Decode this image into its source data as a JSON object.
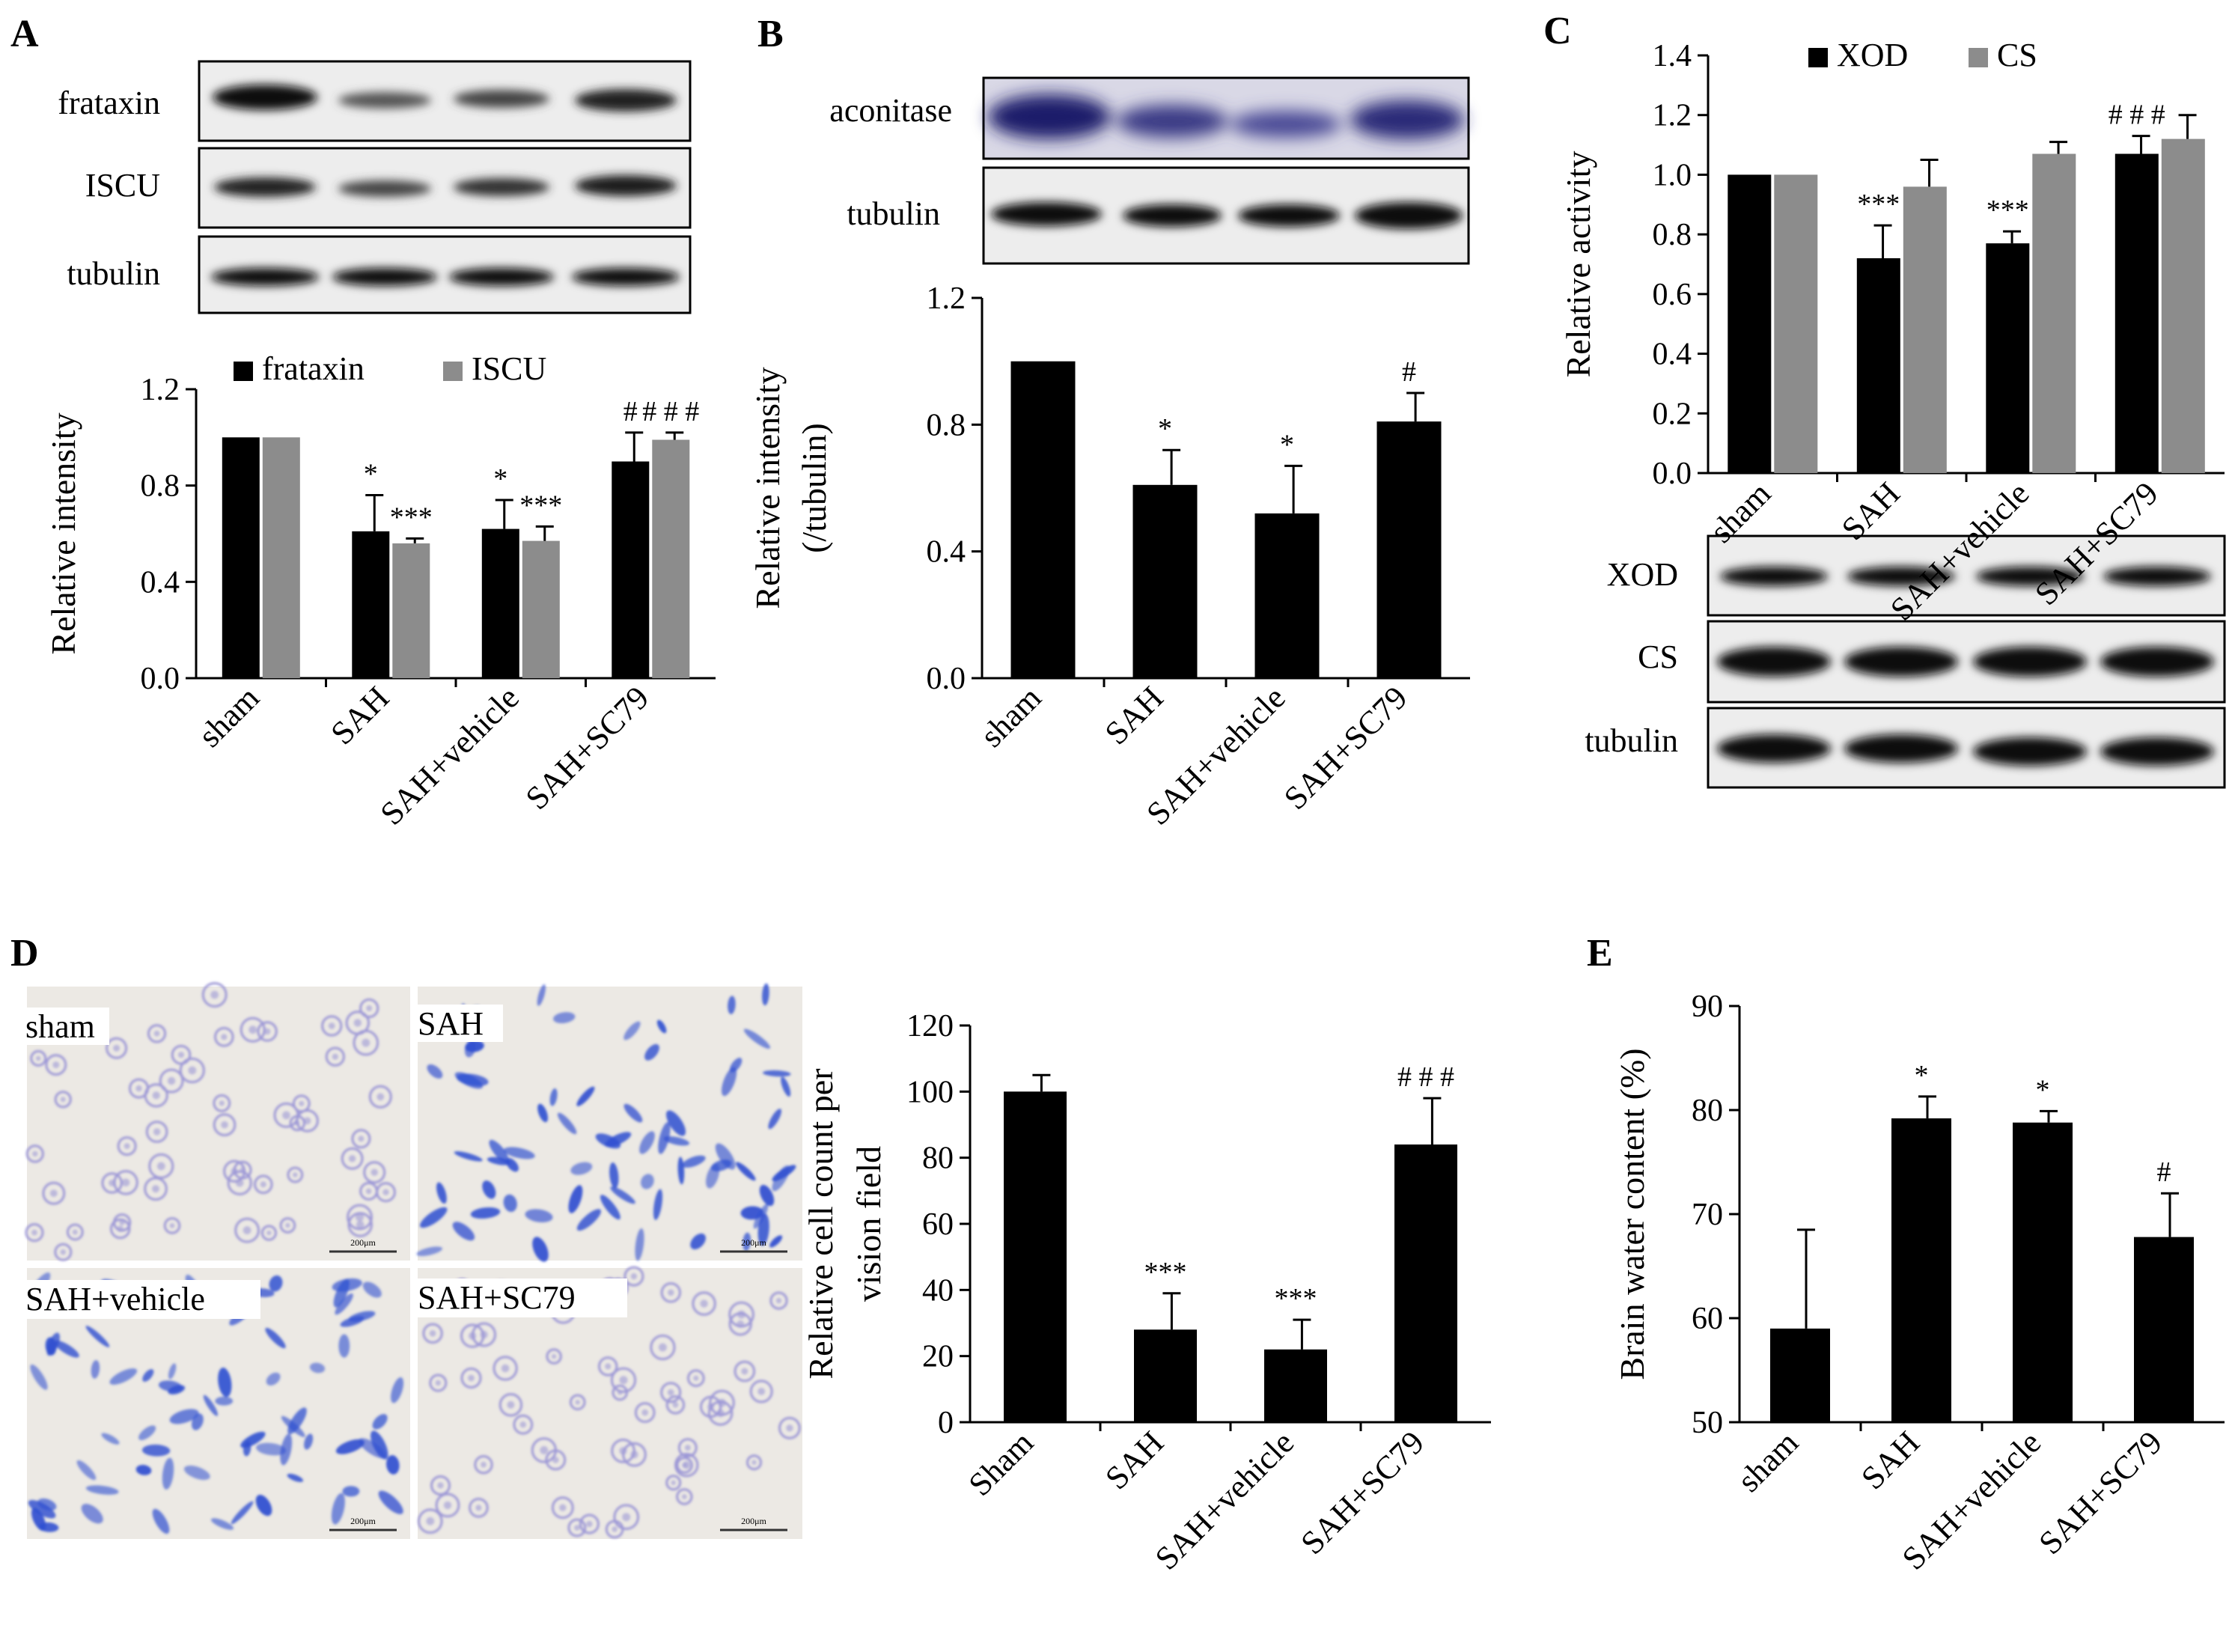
{
  "panels": {
    "A": {
      "letter": "A",
      "blot_labels": [
        "frataxin",
        "ISCU",
        "tubulin"
      ]
    },
    "B": {
      "letter": "B",
      "blot_labels": [
        "aconitase",
        "tubulin"
      ]
    },
    "C": {
      "letter": "C",
      "blot_labels": [
        "XOD",
        "CS",
        "tubulin"
      ]
    },
    "D": {
      "letter": "D",
      "micrograph_labels": [
        "sham",
        "SAH",
        "SAH+vehicle",
        "SAH+SC79"
      ],
      "scale_bar_text": "200μm"
    },
    "E": {
      "letter": "E"
    }
  },
  "colors": {
    "black_series": "#000000",
    "gray_series": "#8c8c8c",
    "blot_band": "#111111",
    "aconitase_band": "#2a2a6e",
    "micrograph_bg": "#ece9e4",
    "cell_blue": "#2f4fd0",
    "cell_pale": "#9c97d6"
  },
  "chart_data": [
    {
      "id": "A",
      "type": "bar",
      "categories": [
        "sham",
        "SAH",
        "SAH+vehicle",
        "SAH+SC79"
      ],
      "series": [
        {
          "name": "frataxin",
          "values": [
            1.0,
            0.61,
            0.62,
            0.9
          ],
          "errors": [
            0.0,
            0.15,
            0.12,
            0.12
          ]
        },
        {
          "name": "ISCU",
          "values": [
            1.0,
            0.56,
            0.57,
            0.99
          ],
          "errors": [
            0.0,
            0.02,
            0.06,
            0.03
          ]
        }
      ],
      "significance": [
        [
          "",
          ""
        ],
        [
          "*",
          "***"
        ],
        [
          "*",
          "***"
        ],
        [
          "#",
          "# # #"
        ]
      ],
      "ylabel": "Relative intensity",
      "ylim": [
        0,
        1.2
      ],
      "yticks": [
        "0.0",
        "0.4",
        "0.8",
        "1.2"
      ],
      "legend": "top"
    },
    {
      "id": "B",
      "type": "bar",
      "categories": [
        "sham",
        "SAH",
        "SAH+vehicle",
        "SAH+SC79"
      ],
      "series": [
        {
          "values": [
            1.0,
            0.61,
            0.52,
            0.81
          ],
          "errors": [
            0.0,
            0.11,
            0.15,
            0.09
          ]
        }
      ],
      "significance": [
        "",
        "*",
        "*",
        "#"
      ],
      "ylabel": [
        "Relative intensity",
        "(/tubulin)"
      ],
      "ylim": [
        0,
        1.2
      ],
      "yticks": [
        "0.0",
        "0.4",
        "0.8",
        "1.2"
      ]
    },
    {
      "id": "C",
      "type": "bar",
      "categories": [
        "sham",
        "SAH",
        "SAH+vehicle",
        "SAH+SC79"
      ],
      "series": [
        {
          "name": "XOD",
          "values": [
            1.0,
            0.72,
            0.77,
            1.07
          ],
          "errors": [
            0.0,
            0.11,
            0.04,
            0.06
          ]
        },
        {
          "name": "CS",
          "values": [
            1.0,
            0.96,
            1.07,
            1.12
          ],
          "errors": [
            0.0,
            0.09,
            0.04,
            0.08
          ]
        }
      ],
      "significance": [
        [
          "",
          ""
        ],
        [
          "***",
          ""
        ],
        [
          "***",
          ""
        ],
        [
          "# # #",
          ""
        ]
      ],
      "ylabel": "Relative activity",
      "ylim": [
        0,
        1.4
      ],
      "yticks": [
        "0.0",
        "0.2",
        "0.4",
        "0.6",
        "0.8",
        "1.0",
        "1.2",
        "1.4"
      ],
      "legend": "top"
    },
    {
      "id": "D",
      "type": "bar",
      "categories": [
        "Sham",
        "SAH",
        "SAH+vehicle",
        "SAH+SC79"
      ],
      "series": [
        {
          "values": [
            100,
            28,
            22,
            84
          ],
          "errors": [
            5,
            11,
            9,
            14
          ]
        }
      ],
      "significance": [
        "",
        "***",
        "***",
        "# # #"
      ],
      "ylabel": [
        "Relative cell count per",
        "vision field"
      ],
      "ylim": [
        0,
        120
      ],
      "yticks": [
        "0",
        "20",
        "40",
        "60",
        "80",
        "100",
        "120"
      ]
    },
    {
      "id": "E",
      "type": "bar",
      "categories": [
        "sham",
        "SAH",
        "SAH+vehicle",
        "SAH+SC79"
      ],
      "series": [
        {
          "values": [
            59,
            79.2,
            78.8,
            67.8
          ],
          "errors": [
            9.5,
            2.1,
            1.1,
            4.2
          ]
        }
      ],
      "significance": [
        "",
        "*",
        "*",
        "#"
      ],
      "ylabel": "Brain water content (%)",
      "ylim": [
        50,
        90
      ],
      "yticks": [
        "50",
        "60",
        "70",
        "80",
        "90"
      ]
    }
  ]
}
